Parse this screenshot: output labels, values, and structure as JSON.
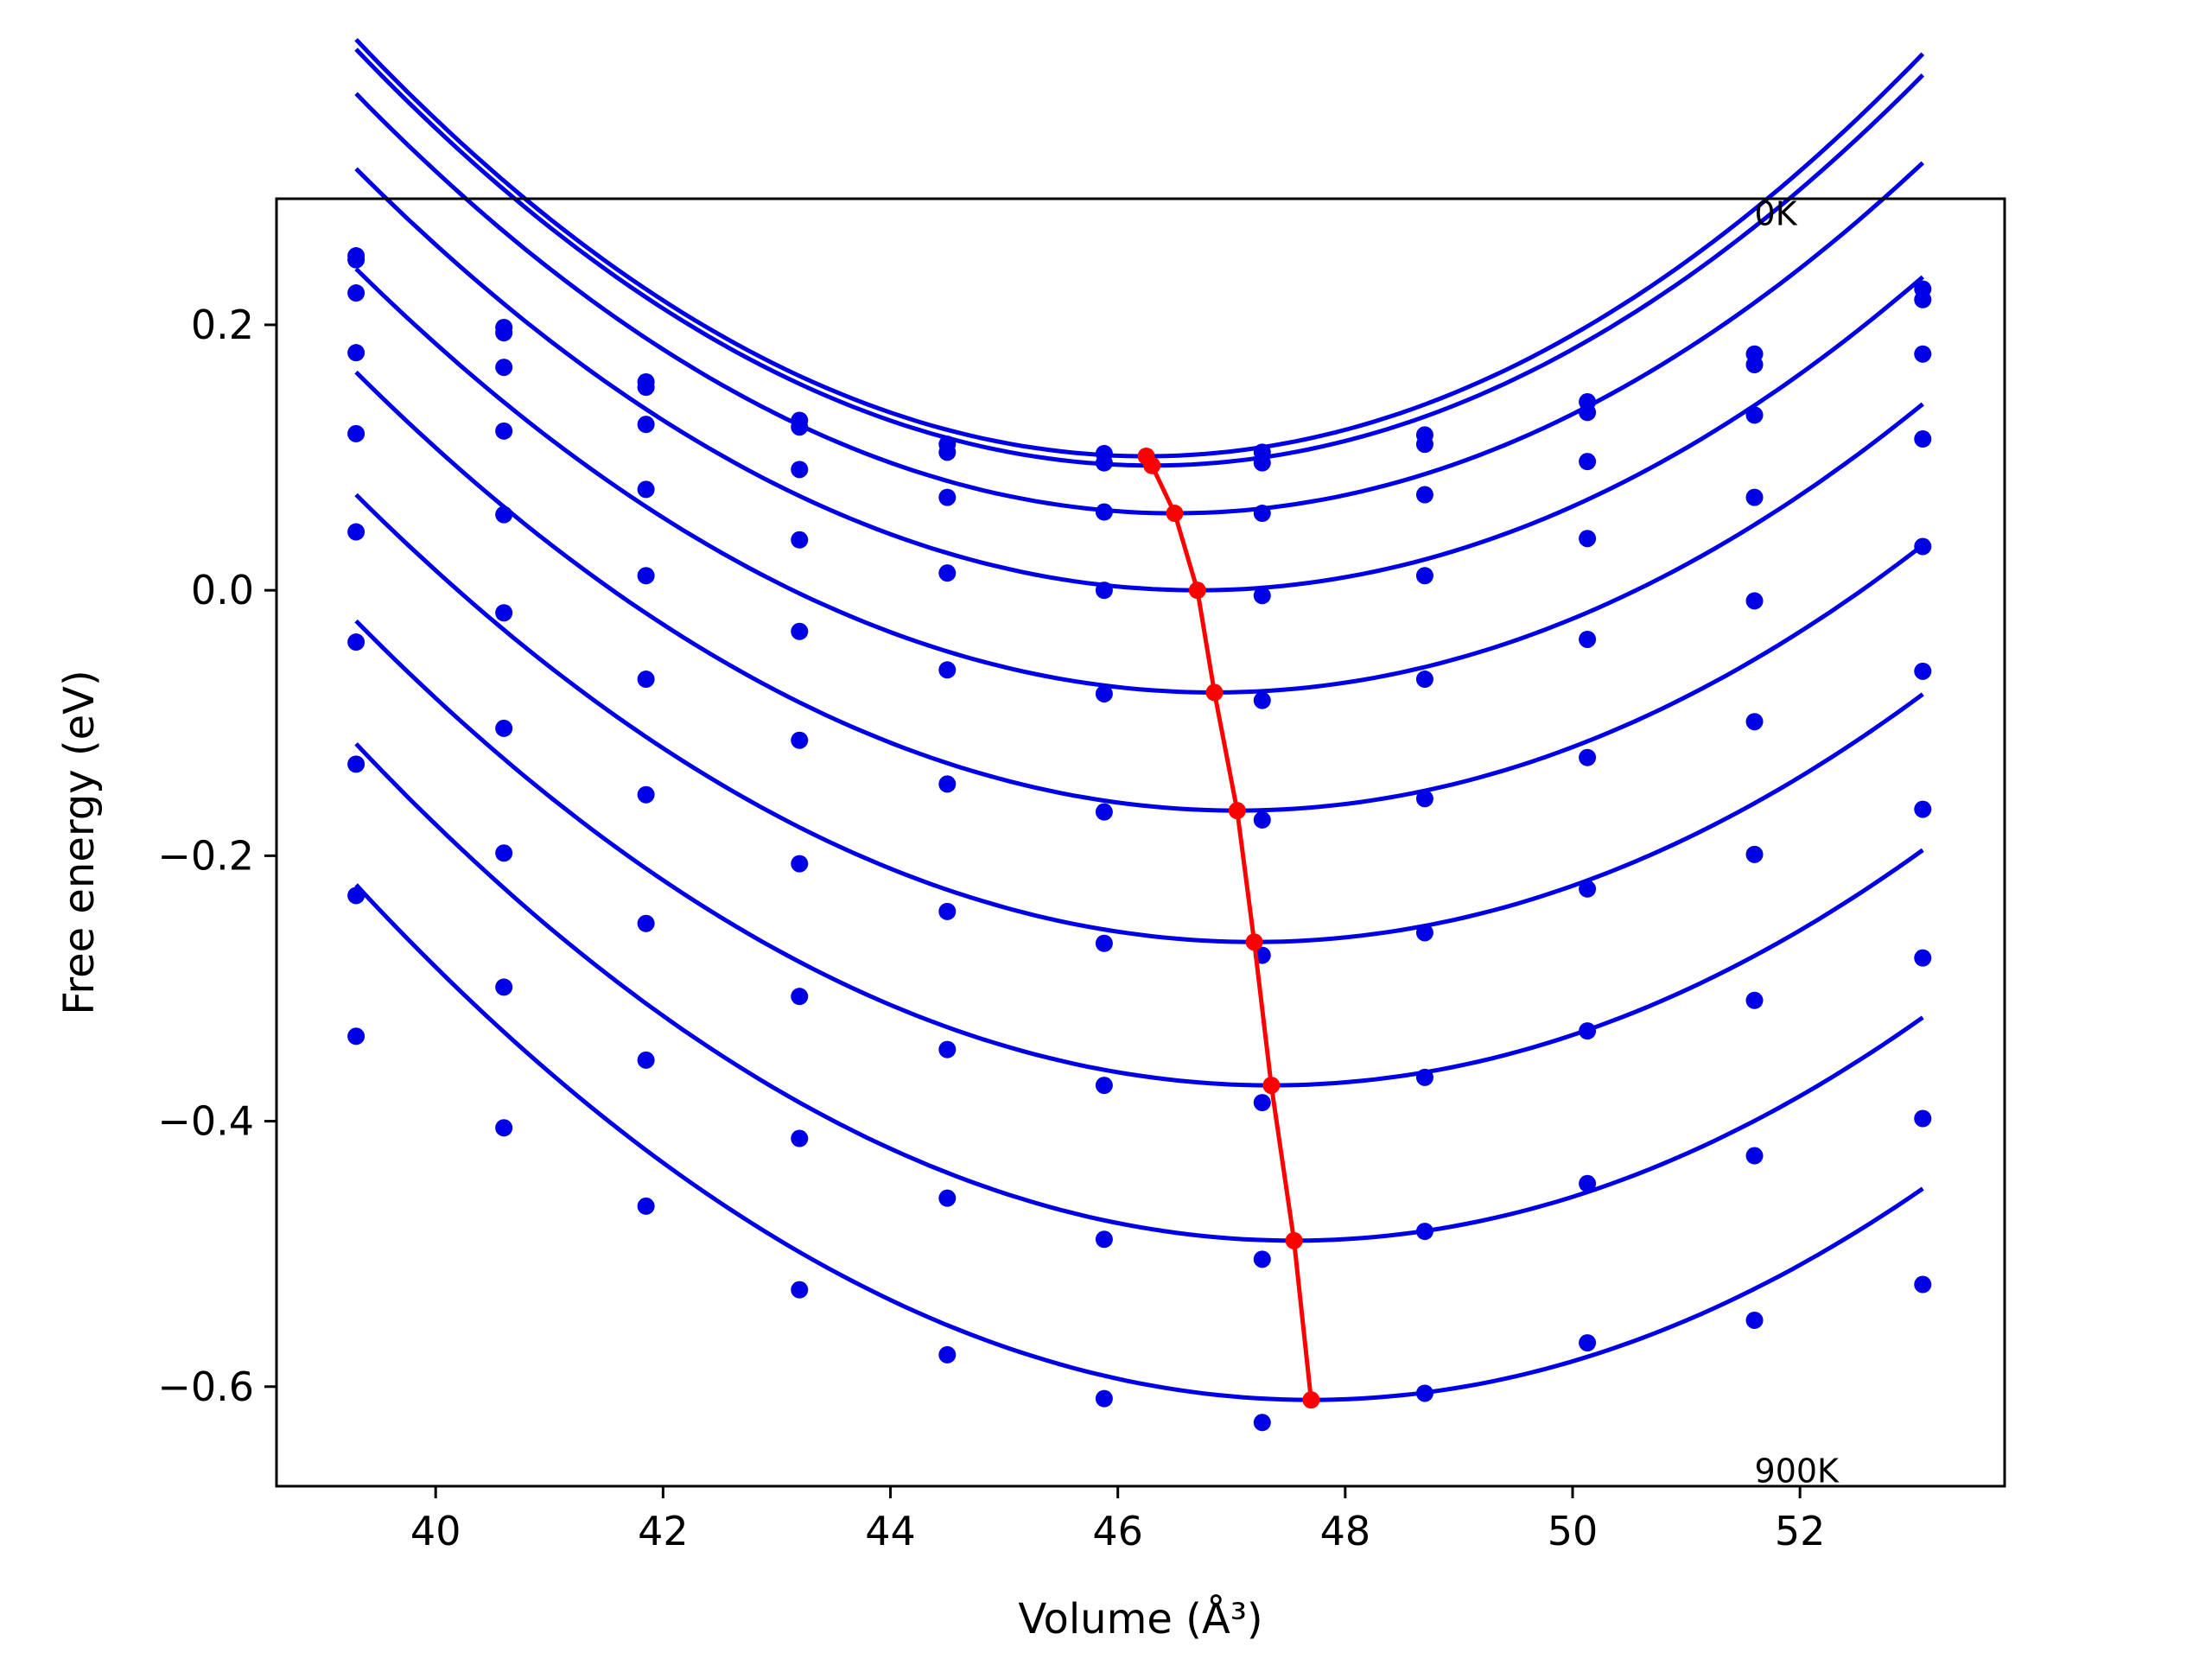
{
  "chart_data": {
    "type": "scatter",
    "xlabel": "Volume (Å³)",
    "ylabel": "Free energy (eV)",
    "xlim": [
      38.6,
      53.8
    ],
    "ylim": [
      -0.675,
      0.295
    ],
    "xticks": [
      40,
      42,
      44,
      46,
      48,
      50,
      52
    ],
    "xtick_labels": [
      "40",
      "42",
      "44",
      "46",
      "48",
      "50",
      "52"
    ],
    "yticks": [
      0.2,
      0.0,
      -0.2,
      -0.4,
      -0.6
    ],
    "ytick_labels": [
      "0.2",
      "0.0",
      "−0.2",
      "−0.4",
      "−0.6"
    ],
    "grid": false,
    "annotations": [
      {
        "text": "0K",
        "x": 51.6,
        "y": 0.275
      },
      {
        "text": "900K",
        "x": 51.6,
        "y": -0.672
      }
    ],
    "colors": {
      "points": "#0000e6",
      "fits": "#0000e6",
      "minima": "#ff0000"
    },
    "volumes": [
      39.3,
      40.6,
      41.85,
      43.2,
      44.5,
      45.88,
      47.27,
      48.7,
      50.13,
      51.6,
      53.08
    ],
    "series": [
      {
        "points": [
          0.252,
          0.198,
          0.157,
          0.128,
          0.11,
          0.103,
          0.104,
          0.117,
          0.142,
          0.178,
          0.227
        ],
        "fit": {
          "V0": 46.25,
          "E0": 0.101,
          "a": 0.0065
        }
      },
      {
        "points": [
          0.249,
          0.194,
          0.153,
          0.123,
          0.104,
          0.096,
          0.096,
          0.11,
          0.134,
          0.17,
          0.219
        ],
        "fit": {
          "V0": 46.3,
          "E0": 0.094,
          "a": 0.0064
        }
      },
      {
        "points": [
          0.224,
          0.168,
          0.125,
          0.091,
          0.07,
          0.059,
          0.058,
          0.072,
          0.097,
          0.132,
          0.178
        ],
        "fit": {
          "V0": 46.5,
          "E0": 0.058,
          "a": 0.0061
        }
      },
      {
        "points": [
          0.179,
          0.12,
          0.076,
          0.038,
          0.013,
          0.0,
          -0.004,
          0.011,
          0.039,
          0.07,
          0.114
        ],
        "fit": {
          "V0": 46.7,
          "E0": 0.0,
          "a": 0.0058
        }
      },
      {
        "points": [
          0.118,
          0.057,
          0.011,
          -0.031,
          -0.06,
          -0.078,
          -0.083,
          -0.067,
          -0.037,
          -0.008,
          0.033
        ],
        "fit": {
          "V0": 46.85,
          "E0": -0.077,
          "a": 0.0056
        }
      },
      {
        "points": [
          0.044,
          -0.017,
          -0.067,
          -0.113,
          -0.146,
          -0.167,
          -0.173,
          -0.157,
          -0.126,
          -0.099,
          -0.061
        ],
        "fit": {
          "V0": 47.05,
          "E0": -0.166,
          "a": 0.0055
        }
      },
      {
        "points": [
          -0.039,
          -0.104,
          -0.154,
          -0.206,
          -0.242,
          -0.266,
          -0.275,
          -0.258,
          -0.225,
          -0.199,
          -0.165
        ],
        "fit": {
          "V0": 47.2,
          "E0": -0.265,
          "a": 0.0054
        }
      },
      {
        "points": [
          -0.131,
          -0.198,
          -0.251,
          -0.306,
          -0.346,
          -0.373,
          -0.386,
          -0.367,
          -0.332,
          -0.309,
          -0.277
        ],
        "fit": {
          "V0": 47.35,
          "E0": -0.373,
          "a": 0.0054
        }
      },
      {
        "points": [
          -0.23,
          -0.299,
          -0.354,
          -0.413,
          -0.458,
          -0.489,
          -0.504,
          -0.483,
          -0.447,
          -0.426,
          -0.398
        ],
        "fit": {
          "V0": 47.55,
          "E0": -0.49,
          "a": 0.0055
        }
      },
      {
        "points": [
          -0.336,
          -0.405,
          -0.464,
          -0.527,
          -0.576,
          -0.609,
          -0.627,
          -0.605,
          -0.567,
          -0.55,
          -0.523
        ],
        "fit": {
          "V0": 47.7,
          "E0": -0.61,
          "a": 0.0055
        }
      }
    ],
    "minima_line": {
      "x": [
        46.25,
        46.3,
        46.5,
        46.7,
        46.85,
        47.05,
        47.2,
        47.35,
        47.55,
        47.7
      ],
      "y": [
        0.101,
        0.094,
        0.058,
        0.0,
        -0.077,
        -0.166,
        -0.265,
        -0.373,
        -0.49,
        -0.61
      ]
    }
  }
}
